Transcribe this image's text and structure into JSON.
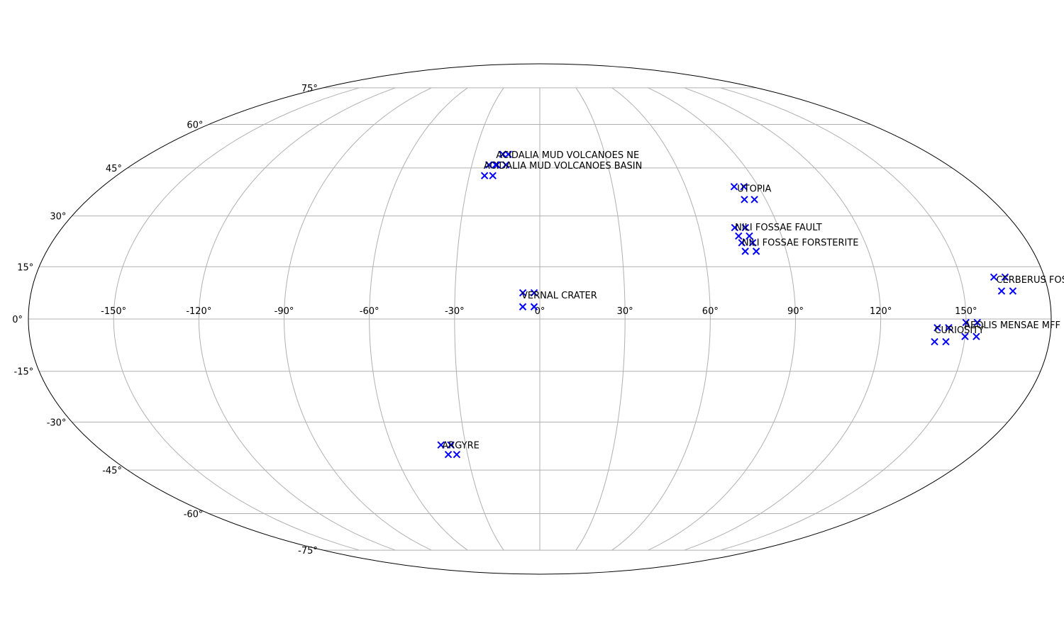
{
  "chart_data": {
    "type": "scatter",
    "projection": "mollweide",
    "grid": true,
    "longitude_ticks": [
      "-150°",
      "-120°",
      "-90°",
      "-60°",
      "-30°",
      "0°",
      "30°",
      "60°",
      "90°",
      "120°",
      "150°"
    ],
    "latitude_ticks": [
      "75°",
      "60°",
      "45°",
      "30°",
      "15°",
      "0°",
      "-15°",
      "-30°",
      "-45°",
      "-60°",
      "-75°"
    ],
    "marker": "x",
    "marker_color": "#0000ff",
    "sites": [
      {
        "label": "ACIDALIA MUD VOLCANOES NE",
        "points": [
          [
            -17,
            49.5
          ],
          [
            -14.5,
            49.5
          ],
          [
            -19.5,
            46
          ],
          [
            -15,
            46
          ]
        ]
      },
      {
        "label": "ACIDALIA MUD VOLCANOES BASIN",
        "points": [
          [
            -22.5,
            46
          ],
          [
            -19,
            46
          ],
          [
            -23.5,
            42.5
          ],
          [
            -20,
            42.5
          ]
        ]
      },
      {
        "label": "UTOPIA",
        "points": [
          [
            80,
            39
          ],
          [
            84,
            39
          ],
          [
            81.5,
            35
          ],
          [
            85.5,
            35
          ]
        ]
      },
      {
        "label": "NILI FOSSAE FAULT",
        "points": [
          [
            73.5,
            26.5
          ],
          [
            77.5,
            26.5
          ],
          [
            74,
            24
          ],
          [
            78,
            24
          ]
        ]
      },
      {
        "label": "NILI FOSSAE FORSTERITE",
        "points": [
          [
            74.5,
            22
          ],
          [
            78.5,
            22
          ],
          [
            75,
            19.5
          ],
          [
            79,
            19.5
          ]
        ]
      },
      {
        "label": "VERNAL CRATER",
        "points": [
          [
            -6,
            7.5
          ],
          [
            -2,
            7.5
          ],
          [
            -6,
            3.5
          ],
          [
            -2,
            3.5
          ]
        ]
      },
      {
        "label": "CERBERUS FOSSAE",
        "points": [
          [
            162,
            12
          ],
          [
            166,
            12
          ],
          [
            163.5,
            8
          ],
          [
            167.5,
            8
          ]
        ]
      },
      {
        "label": "AEOLIS MENSAE MFF",
        "points": [
          [
            150,
            -1
          ],
          [
            154,
            -1
          ],
          [
            150,
            -5
          ],
          [
            154,
            -5
          ]
        ]
      },
      {
        "label": "CURIOSITY",
        "points": [
          [
            140,
            -2.5
          ],
          [
            144,
            -2.5
          ],
          [
            139.5,
            -6.5
          ],
          [
            143.5,
            -6.5
          ]
        ]
      },
      {
        "label": "ARGYRE",
        "points": [
          [
            -40,
            -37
          ],
          [
            -36,
            -37
          ],
          [
            -38,
            -40
          ],
          [
            -34.5,
            -40
          ]
        ]
      }
    ]
  }
}
